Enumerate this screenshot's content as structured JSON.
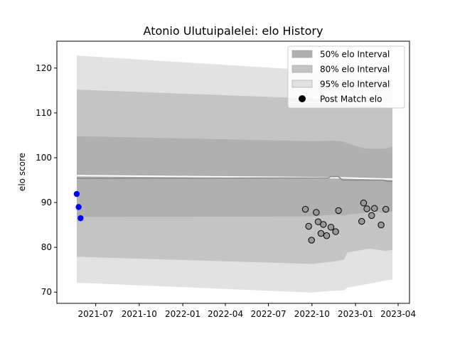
{
  "chart_data": {
    "type": "area",
    "title": "Atonio Ulutuipalelei: elo History",
    "xlabel": "",
    "ylabel": "elo score",
    "xlim": [
      "2021-04-10",
      "2023-04-25"
    ],
    "ylim": [
      67.5,
      126.0
    ],
    "x_ticks": [
      "2021-07",
      "2021-10",
      "2022-01",
      "2022-04",
      "2022-07",
      "2022-10",
      "2023-01",
      "2023-04"
    ],
    "y_ticks": [
      70,
      80,
      90,
      100,
      110,
      120
    ],
    "grid": false,
    "legend_position": "top-right",
    "legend": [
      {
        "label": "50% elo Interval",
        "color": "#b0b0b0",
        "kind": "patch"
      },
      {
        "label": "80% elo Interval",
        "color": "#c4c4c4",
        "kind": "patch"
      },
      {
        "label": "95% elo Interval",
        "color": "#e2e2e2",
        "kind": "patch"
      },
      {
        "label": "Post Match elo",
        "color": "#000000",
        "kind": "marker"
      }
    ],
    "band_dates": [
      "2021-05-22",
      "2022-10-01",
      "2022-11-15",
      "2022-12-08",
      "2022-12-15",
      "2023-01-20",
      "2023-02-01",
      "2023-03-05",
      "2023-03-20"
    ],
    "bands": [
      {
        "name": "95% elo Interval",
        "color": "#e2e2e2",
        "upper": [
          122.8,
          119.5,
          119.4,
          119.2,
          118.9,
          118.5,
          118.4,
          118.2,
          118.1
        ],
        "lower": [
          72.1,
          69.9,
          70.3,
          70.4,
          71.0,
          71.7,
          71.9,
          72.6,
          72.8
        ]
      },
      {
        "name": "80% elo Interval",
        "color": "#c4c4c4",
        "upper": [
          115.2,
          113.2,
          112.9,
          112.6,
          112.1,
          111.5,
          111.5,
          111.3,
          111.2
        ],
        "lower": [
          77.9,
          76.3,
          76.8,
          77.3,
          78.9,
          79.5,
          79.7,
          79.2,
          79.4
        ]
      },
      {
        "name": "50% elo Interval",
        "color": "#b0b0b0",
        "upper": [
          104.8,
          103.7,
          103.8,
          103.6,
          103.2,
          102.1,
          102.0,
          102.0,
          102.5
        ],
        "lower": [
          86.8,
          86.9,
          87.3,
          87.1,
          87.3,
          87.7,
          88.2,
          87.7,
          88.0
        ]
      }
    ],
    "mean_line": {
      "color": "#888888",
      "dates": [
        "2021-05-22",
        "2022-11-05",
        "2022-11-10",
        "2022-11-25",
        "2022-12-05",
        "2023-02-28",
        "2023-03-10",
        "2023-03-20"
      ],
      "values": [
        95.4,
        95.5,
        95.8,
        95.8,
        95.0,
        95.0,
        94.7,
        94.7
      ]
    },
    "white_line": {
      "color": "#ffffff",
      "dates": [
        "2021-05-22",
        "2022-12-10",
        "2023-03-20"
      ],
      "values": [
        96.0,
        95.5,
        95.2
      ]
    },
    "pre_matches": {
      "color": "#0000ff",
      "x": [
        "2021-05-22",
        "2021-05-26",
        "2021-05-30"
      ],
      "y": [
        91.9,
        89.0,
        86.5
      ]
    },
    "post_matches": {
      "color": "#999999",
      "edge": "#000000",
      "x": [
        "2022-09-17",
        "2022-09-24",
        "2022-09-30",
        "2022-10-10",
        "2022-10-14",
        "2022-10-20",
        "2022-10-25",
        "2022-11-01",
        "2022-11-10",
        "2022-11-20",
        "2022-11-26",
        "2023-01-14",
        "2023-01-18",
        "2023-01-25",
        "2023-02-04",
        "2023-02-10",
        "2023-02-24",
        "2023-03-06"
      ],
      "y": [
        88.5,
        84.7,
        81.6,
        87.8,
        85.7,
        83.1,
        85.1,
        82.6,
        84.5,
        83.5,
        88.2,
        85.8,
        89.9,
        88.6,
        87.1,
        88.7,
        85.0,
        88.5
      ]
    }
  }
}
